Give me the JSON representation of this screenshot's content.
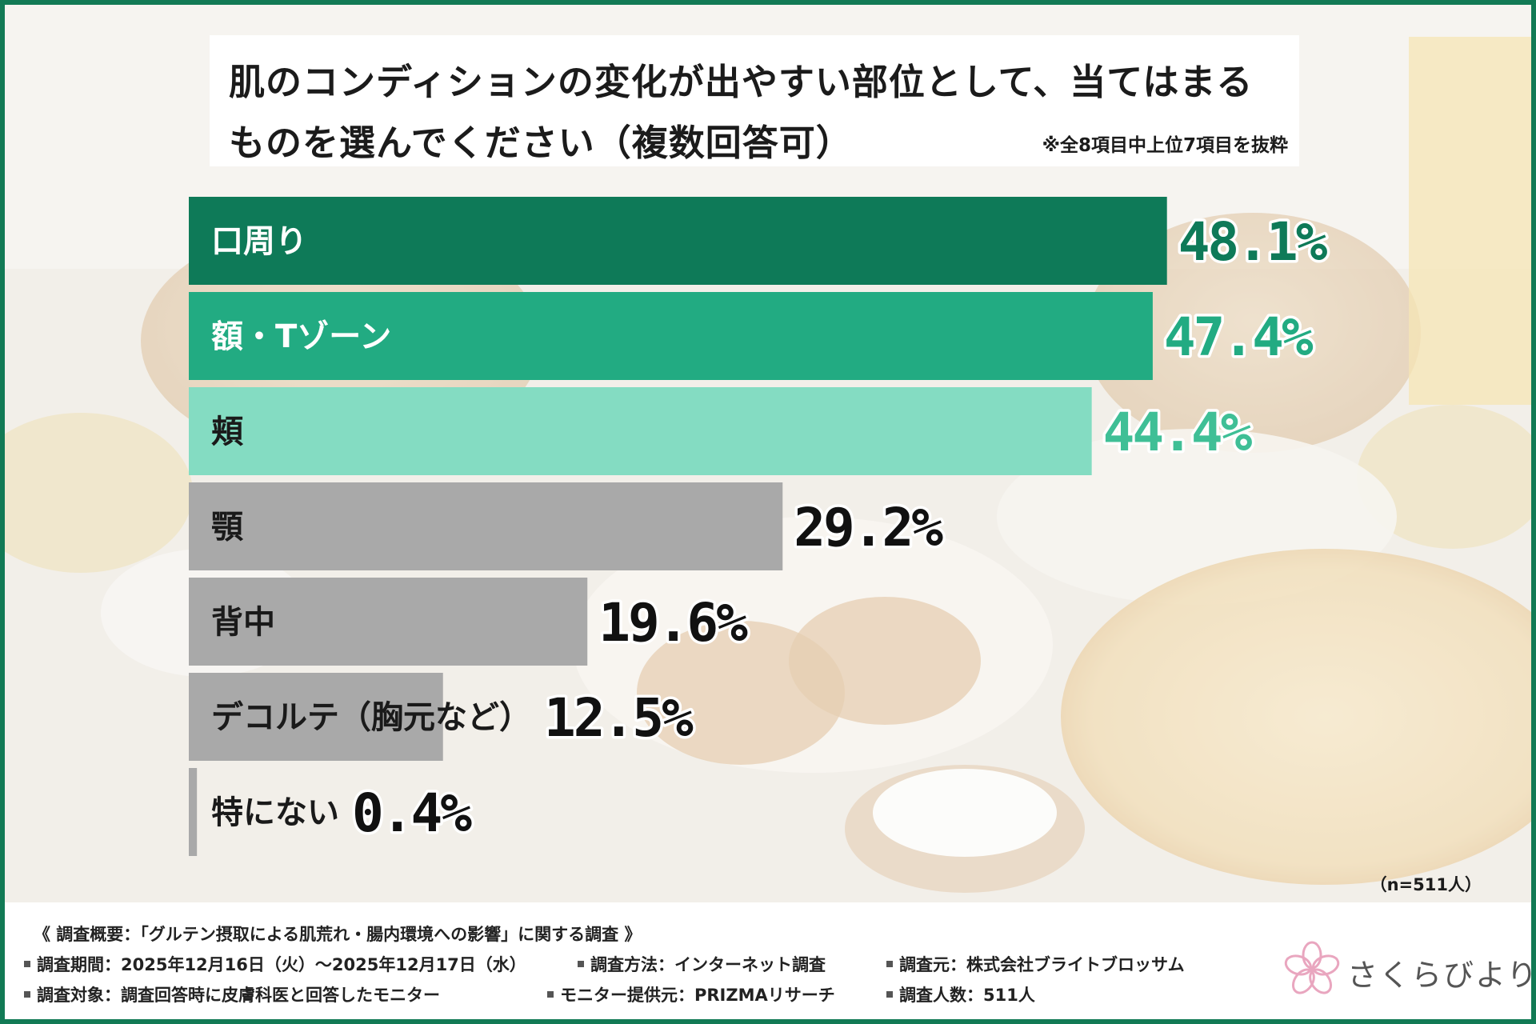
{
  "colors": {
    "frame": "#127a55",
    "bar_top1": "#0e7a58",
    "bar_top2": "#22ab82",
    "bar_top3": "#84dcc2",
    "bar_gray": "#a9a9a9"
  },
  "title": {
    "line1": "肌のコンディションの変化が出やすい部位として、当てはまる",
    "line2": "ものを選んでください（複数回答可）",
    "note": "※全8項目中上位7項目を抜粋"
  },
  "chart_data": {
    "type": "bar",
    "orientation": "horizontal",
    "title": "肌のコンディションの変化が出やすい部位として、当てはまるものを選んでください（複数回答可）",
    "unit": "%",
    "xlim": [
      0,
      50
    ],
    "categories": [
      "口周り",
      "額・Tゾーン",
      "頬",
      "顎",
      "背中",
      "デコルテ（胸元など）",
      "特にない"
    ],
    "values": [
      48.1,
      47.4,
      44.4,
      29.2,
      19.6,
      12.5,
      0.4
    ],
    "value_labels": [
      "48.1%",
      "47.4%",
      "44.4%",
      "29.2%",
      "19.6%",
      "12.5%",
      "0.4%"
    ],
    "n_label": "（n=511人）"
  },
  "footer": {
    "summary": "《 調査概要：「グルテン摂取による肌荒れ・腸内環境への影響」に関する調査 》",
    "period": "調査期間：2025年12月16日（火）～2025年12月17日（水）",
    "method": "調査方法：インターネット調査",
    "source": "調査元：株式会社ブライトブロッサム",
    "target": "調査対象：調査回答時に皮膚科医と回答したモニター",
    "provider": "モニター提供元：PRIZMAリサーチ",
    "count": "調査人数：511人"
  },
  "logo": {
    "text": "さくらびより",
    "icon": "sakura-flower-icon"
  }
}
